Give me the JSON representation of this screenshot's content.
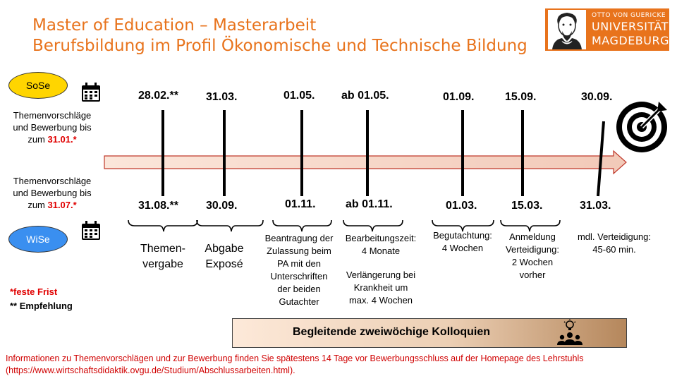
{
  "header": {
    "title_line1": "Master of Education – Masterarbeit",
    "title_line2": "Berufsbildung im Profil Ökonomische und Technische Bildung"
  },
  "logo": {
    "line1": "OTTO VON GUERICKE",
    "line2": "UNIVERSITÄT",
    "line3": "MAGDEBURG"
  },
  "semesters": {
    "sose": {
      "label": "SoSe",
      "text_line1": "Themenvorschläge",
      "text_line2": "und Bewerbung bis",
      "text_prefix": "zum ",
      "deadline": "31.01.*"
    },
    "wise": {
      "label": "WiSe",
      "text_line1": "Themenvorschläge",
      "text_line2": "und Bewerbung bis",
      "text_prefix": "zum ",
      "deadline": "31.07.*"
    }
  },
  "milestones": [
    {
      "sose_date": "28.02.**",
      "wise_date": "31.08.**",
      "note": [
        "Themen-",
        "vergabe"
      ]
    },
    {
      "sose_date": "31.03.",
      "wise_date": "30.09.",
      "note": [
        "Abgabe",
        "Exposé"
      ]
    },
    {
      "sose_date": "01.05.",
      "wise_date": "01.11.",
      "note": [
        "Beantragung der",
        "Zulassung beim",
        "PA mit den",
        "Unterschriften",
        "der beiden",
        "Gutachter"
      ]
    },
    {
      "sose_date": "ab 01.05.",
      "wise_date": "ab 01.11.",
      "note": [
        "Bearbeitungszeit:",
        "4 Monate",
        "",
        "Verlängerung bei",
        "Krankheit um",
        "max. 4 Wochen"
      ]
    },
    {
      "sose_date": "01.09.",
      "wise_date": "01.03.",
      "note": [
        "Begutachtung:",
        "4 Wochen"
      ]
    },
    {
      "sose_date": "15.09.",
      "wise_date": "15.03.",
      "note": [
        "Anmeldung",
        "Verteidigung:",
        "2 Wochen",
        "vorher"
      ]
    },
    {
      "sose_date": "30.09.",
      "wise_date": "31.03.",
      "note": [
        "mdl. Verteidigung:",
        "45-60 min."
      ]
    }
  ],
  "legend": {
    "fixed": "*feste Frist",
    "recommendation": "** Empfehlung"
  },
  "kolloquien": {
    "label": "Begleitende zweiwöchige Kolloquien"
  },
  "footer": {
    "text": "Informationen zu Themenvorschlägen und zur Bewerbung finden Sie spätestens 14 Tage vor Bewerbungsschluss auf der Homepage des Lehrstuhls (https://www.wirtschaftsdidaktik.ovgu.de/Studium/Abschlussarbeiten.html)."
  },
  "colors": {
    "accent": "#e8731c",
    "sose": "#ffd500",
    "wise": "#3a8ff0",
    "deadline_red": "#e00000"
  },
  "icons": [
    "calendar-icon",
    "target-icon",
    "group-idea-icon",
    "university-logo"
  ]
}
